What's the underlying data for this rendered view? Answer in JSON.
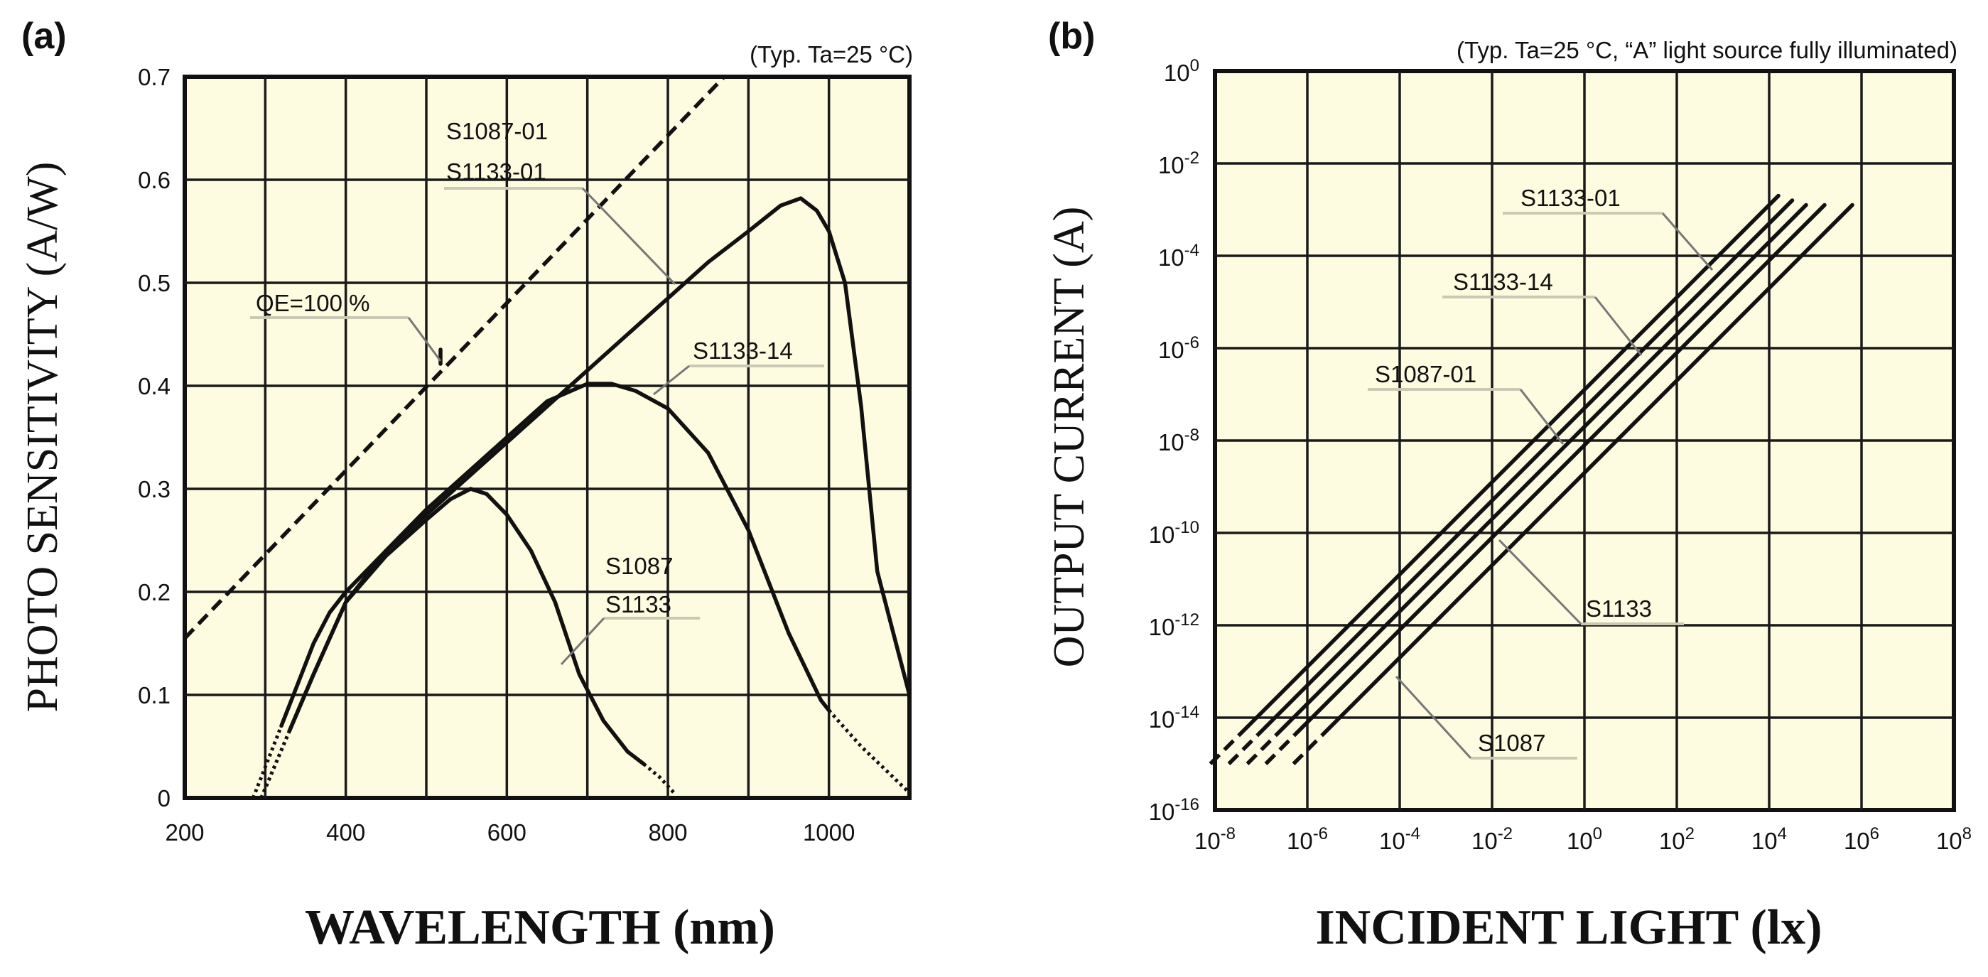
{
  "chart_data": [
    {
      "type": "line",
      "panel_label": "(a)",
      "condition": "(Typ. Ta=25 °C)",
      "xlabel": "WAVELENGTH (nm)",
      "ylabel": "PHOTO SENSITIVITY (A/W)",
      "xlim": [
        200,
        1100
      ],
      "ylim": [
        0,
        0.7
      ],
      "x_ticks": [
        "200",
        "400",
        "600",
        "800",
        "1000"
      ],
      "y_ticks": [
        "0",
        "0.1",
        "0.2",
        "0.3",
        "0.4",
        "0.5",
        "0.6",
        "0.7"
      ],
      "grid": true,
      "series": [
        {
          "name": "QE=100 %",
          "style": "dashed",
          "points": [
            [
              200,
              0.155
            ],
            [
              870,
              0.7
            ]
          ]
        },
        {
          "name": "S1087-01 / S1133-01",
          "style": "solid",
          "points": [
            [
              320,
              0.07
            ],
            [
              340,
              0.11
            ],
            [
              360,
              0.15
            ],
            [
              380,
              0.18
            ],
            [
              400,
              0.2
            ],
            [
              450,
              0.24
            ],
            [
              500,
              0.275
            ],
            [
              550,
              0.31
            ],
            [
              600,
              0.345
            ],
            [
              650,
              0.38
            ],
            [
              700,
              0.415
            ],
            [
              750,
              0.45
            ],
            [
              800,
              0.485
            ],
            [
              850,
              0.52
            ],
            [
              900,
              0.55
            ],
            [
              940,
              0.575
            ],
            [
              965,
              0.582
            ],
            [
              985,
              0.57
            ],
            [
              1000,
              0.55
            ],
            [
              1020,
              0.5
            ],
            [
              1040,
              0.38
            ],
            [
              1060,
              0.22
            ],
            [
              1080,
              0.16
            ],
            [
              1100,
              0.1
            ]
          ],
          "dotted_extensions": [
            [
              [
                285,
                0.0
              ],
              [
                320,
                0.07
              ]
            ]
          ]
        },
        {
          "name": "S1133-14",
          "style": "solid",
          "points": [
            [
              330,
              0.065
            ],
            [
              360,
              0.12
            ],
            [
              400,
              0.19
            ],
            [
              450,
              0.24
            ],
            [
              500,
              0.28
            ],
            [
              550,
              0.315
            ],
            [
              600,
              0.35
            ],
            [
              650,
              0.385
            ],
            [
              700,
              0.402
            ],
            [
              730,
              0.402
            ],
            [
              760,
              0.395
            ],
            [
              800,
              0.378
            ],
            [
              850,
              0.335
            ],
            [
              900,
              0.26
            ],
            [
              950,
              0.16
            ],
            [
              990,
              0.095
            ],
            [
              1000,
              0.085
            ]
          ],
          "dotted_extensions": [
            [
              [
                295,
                0.0
              ],
              [
                330,
                0.065
              ]
            ],
            [
              [
                1000,
                0.085
              ],
              [
                1040,
                0.05
              ],
              [
                1080,
                0.02
              ],
              [
                1100,
                0.005
              ]
            ]
          ]
        },
        {
          "name": "S1087 / S1133",
          "style": "solid",
          "points": [
            [
              330,
              0.065
            ],
            [
              360,
              0.12
            ],
            [
              400,
              0.19
            ],
            [
              450,
              0.235
            ],
            [
              500,
              0.27
            ],
            [
              530,
              0.29
            ],
            [
              555,
              0.3
            ],
            [
              575,
              0.295
            ],
            [
              600,
              0.275
            ],
            [
              630,
              0.24
            ],
            [
              660,
              0.19
            ],
            [
              690,
              0.12
            ],
            [
              720,
              0.075
            ],
            [
              750,
              0.045
            ],
            [
              770,
              0.033
            ]
          ],
          "dotted_extensions": [
            [
              [
                295,
                0.0
              ],
              [
                330,
                0.065
              ]
            ],
            [
              [
                770,
                0.033
              ],
              [
                790,
                0.02
              ],
              [
                810,
                0.003
              ]
            ]
          ]
        }
      ],
      "annotations": [
        {
          "text": "S1087-01",
          "points_to": [
            800,
            0.49
          ]
        },
        {
          "text": "S1133-01",
          "points_to": [
            800,
            0.49
          ]
        },
        {
          "text": "QE=100 %",
          "points_to": [
            520,
            0.42
          ]
        },
        {
          "text": "S1133-14",
          "points_to": [
            760,
            0.395
          ]
        },
        {
          "text": "S1087",
          "points_to": [
            650,
            0.14
          ]
        },
        {
          "text": "S1133",
          "points_to": [
            650,
            0.14
          ]
        }
      ]
    },
    {
      "type": "line",
      "panel_label": "(b)",
      "condition": "(Typ. Ta=25 °C, “A” light source fully illuminated)",
      "xlabel": "INCIDENT LIGHT (lx)",
      "ylabel": "OUTPUT CURRENT (A)",
      "x_scale": "log",
      "y_scale": "log",
      "xlim_exp": [
        -8,
        8
      ],
      "ylim_exp": [
        -16,
        0
      ],
      "x_ticks": [
        {
          "base": "10",
          "exp": "-8"
        },
        {
          "base": "10",
          "exp": "-6"
        },
        {
          "base": "10",
          "exp": "-4"
        },
        {
          "base": "10",
          "exp": "-2"
        },
        {
          "base": "10",
          "exp": "0"
        },
        {
          "base": "10",
          "exp": "2"
        },
        {
          "base": "10",
          "exp": "4"
        },
        {
          "base": "10",
          "exp": "6"
        },
        {
          "base": "10",
          "exp": "8"
        }
      ],
      "y_ticks": [
        {
          "base": "10",
          "exp": "-16"
        },
        {
          "base": "10",
          "exp": "-14"
        },
        {
          "base": "10",
          "exp": "-12"
        },
        {
          "base": "10",
          "exp": "-10"
        },
        {
          "base": "10",
          "exp": "-8"
        },
        {
          "base": "10",
          "exp": "-6"
        },
        {
          "base": "10",
          "exp": "-4"
        },
        {
          "base": "10",
          "exp": "-2"
        },
        {
          "base": "10",
          "exp": "0"
        }
      ],
      "grid": true,
      "series": [
        {
          "name": "S1133-01",
          "log_points": [
            [
              -7.3,
              -14.2
            ],
            [
              4.2,
              -2.7
            ]
          ],
          "dashed_extension": [
            [
              -8.1,
              -15.0
            ],
            [
              -7.3,
              -14.2
            ]
          ]
        },
        {
          "name": "S1133-14",
          "log_points": [
            [
              -6.9,
              -14.2
            ],
            [
              4.5,
              -2.8
            ]
          ],
          "dashed_extension": [
            [
              -7.7,
              -15.0
            ],
            [
              -6.9,
              -14.2
            ]
          ]
        },
        {
          "name": "S1087-01",
          "log_points": [
            [
              -6.5,
              -14.2
            ],
            [
              4.8,
              -2.9
            ]
          ],
          "dashed_extension": [
            [
              -7.3,
              -15.0
            ],
            [
              -6.5,
              -14.2
            ]
          ]
        },
        {
          "name": "S1133",
          "log_points": [
            [
              -6.1,
              -14.2
            ],
            [
              5.2,
              -2.9
            ]
          ],
          "dashed_extension": [
            [
              -6.9,
              -15.0
            ],
            [
              -6.1,
              -14.2
            ]
          ]
        },
        {
          "name": "S1087",
          "log_points": [
            [
              -5.6,
              -14.3
            ],
            [
              5.8,
              -2.9
            ]
          ],
          "dashed_extension": [
            [
              -6.3,
              -15.0
            ],
            [
              -5.6,
              -14.3
            ]
          ]
        }
      ],
      "annotations": [
        {
          "text": "S1133-01",
          "points_to_log": [
            3.2,
            -4.2
          ]
        },
        {
          "text": "S1133-14",
          "points_to_log": [
            1.5,
            -6.0
          ]
        },
        {
          "text": "S1087-01",
          "points_to_log": [
            -0.2,
            -8.0
          ]
        },
        {
          "text": "S1133",
          "points_to_log": [
            -1.8,
            -10.0
          ]
        },
        {
          "text": "S1087",
          "points_to_log": [
            -4.2,
            -12.7
          ]
        }
      ]
    }
  ]
}
